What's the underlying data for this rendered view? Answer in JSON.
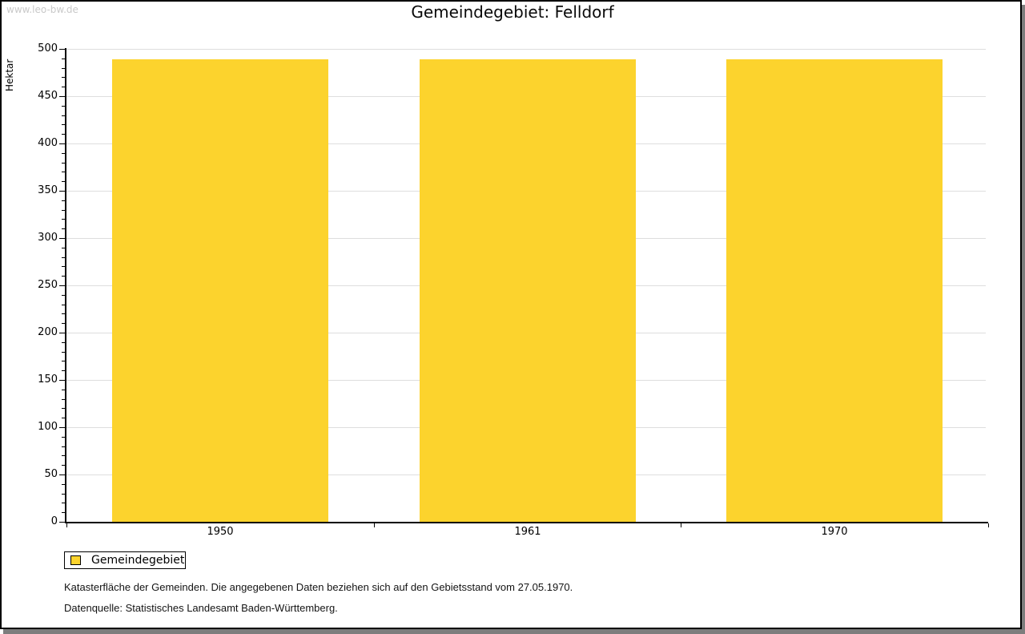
{
  "watermark": "www.leo-bw.de",
  "title": "Gemeindegebiet: Felldorf",
  "chart_data": {
    "type": "bar",
    "title": "Gemeindegebiet: Felldorf",
    "categories": [
      "1950",
      "1961",
      "1970"
    ],
    "series": [
      {
        "name": "Gemeindegebiet",
        "values": [
          489,
          489,
          489
        ]
      }
    ],
    "xlabel": "",
    "ylabel": "Hektar",
    "ylim": [
      0,
      500
    ],
    "y_major_step": 50,
    "y_minor_step": 10,
    "grid": "horizontal",
    "gridline_color": "#dedede",
    "legend_position": "bottom-left",
    "bar_color": "#fcd32d"
  },
  "legend": {
    "items": [
      {
        "label": "Gemeindegebiet",
        "color": "#fcd32d"
      }
    ]
  },
  "footnotes": [
    "Katasterfläche der Gemeinden. Die angegebenen Daten beziehen sich auf den Gebietsstand vom 27.05.1970.",
    "Datenquelle: Statistisches Landesamt Baden-Württemberg."
  ]
}
